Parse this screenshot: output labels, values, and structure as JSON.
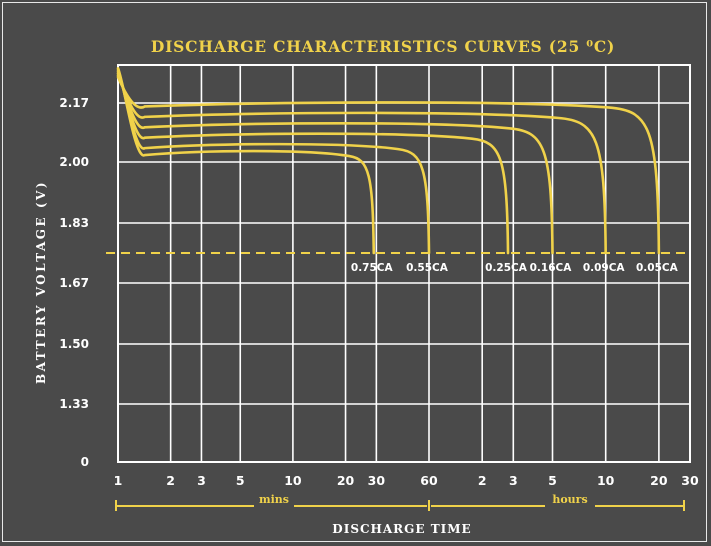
{
  "chart_data": {
    "type": "line",
    "title": "DISCHARGE CHARACTERISTICS CURVES (25 ⁰C)",
    "ylabel": "BATTERY VOLTAGE (V)",
    "xlabel": "DISCHARGE TIME",
    "y_ticks": [
      "2.17",
      "2.00",
      "1.83",
      "1.67",
      "1.50",
      "1.33",
      "0"
    ],
    "x_ticks": [
      {
        "label": "1",
        "minutes": 1
      },
      {
        "label": "2",
        "minutes": 2
      },
      {
        "label": "3",
        "minutes": 3
      },
      {
        "label": "5",
        "minutes": 5
      },
      {
        "label": "10",
        "minutes": 10
      },
      {
        "label": "20",
        "minutes": 20
      },
      {
        "label": "30",
        "minutes": 30
      },
      {
        "label": "60",
        "minutes": 60
      },
      {
        "label": "2",
        "minutes": 120
      },
      {
        "label": "3",
        "minutes": 180
      },
      {
        "label": "5",
        "minutes": 300
      },
      {
        "label": "10",
        "minutes": 600
      },
      {
        "label": "20",
        "minutes": 1200
      },
      {
        "label": "30",
        "minutes": 1800
      }
    ],
    "x_unit_labels": {
      "mins": "mins",
      "hours": "hours"
    },
    "cutoff_voltage": 1.75,
    "series": [
      {
        "name": "0.75CA",
        "start_voltage": 2.27,
        "plateau_voltage": 2.02,
        "end_minutes": 29,
        "knee_minutes": 21
      },
      {
        "name": "0.55CA",
        "start_voltage": 2.265,
        "plateau_voltage": 2.04,
        "end_minutes": 60,
        "knee_minutes": 40
      },
      {
        "name": "0.25CA",
        "start_voltage": 2.26,
        "plateau_voltage": 2.07,
        "end_minutes": 168,
        "knee_minutes": 105
      },
      {
        "name": "0.16CA",
        "start_voltage": 2.255,
        "plateau_voltage": 2.1,
        "end_minutes": 300,
        "knee_minutes": 170
      },
      {
        "name": "0.09CA",
        "start_voltage": 2.25,
        "plateau_voltage": 2.13,
        "end_minutes": 600,
        "knee_minutes": 320
      },
      {
        "name": "0.05CA",
        "start_voltage": 2.245,
        "plateau_voltage": 2.16,
        "end_minutes": 1200,
        "knee_minutes": 620
      }
    ],
    "colors": {
      "background": "#4a4a4a",
      "grid": "#ffffff",
      "curve": "#f0d24a",
      "text": "#ffffff",
      "accent": "#f0d24a"
    }
  }
}
